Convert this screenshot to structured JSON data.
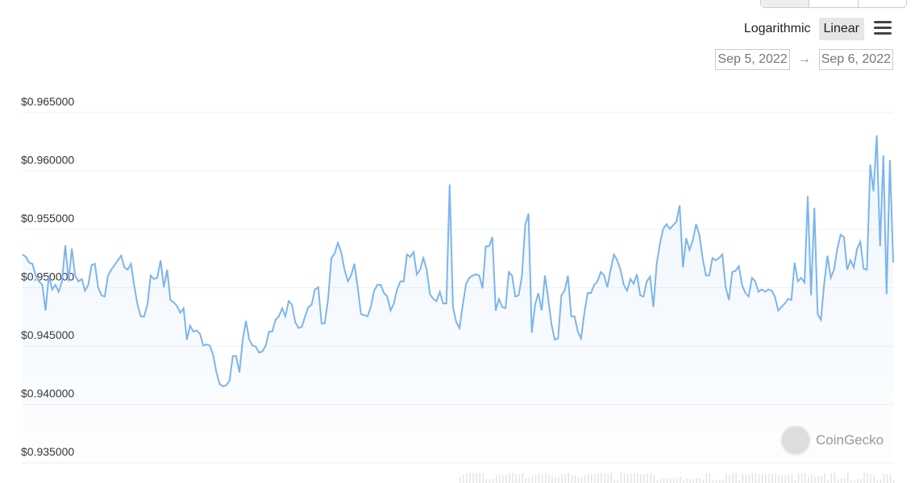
{
  "controls": {
    "scale_options": [
      "Logarithmic",
      "Linear"
    ],
    "active_scale": "Linear",
    "date_from": "Sep 5, 2022",
    "date_arrow": "→",
    "date_to": "Sep 6, 2022",
    "menu_icon": "hamburger-menu-icon"
  },
  "watermark": "CoinGecko",
  "chart_data": {
    "type": "area",
    "title": "",
    "xlabel": "",
    "ylabel": "",
    "x_range": [
      "Sep 5, 2022",
      "Sep 6, 2022"
    ],
    "ylim": [
      0.935,
      0.965
    ],
    "yticks": [
      "$0.935000",
      "$0.940000",
      "$0.945000",
      "$0.950000",
      "$0.955000",
      "$0.960000",
      "$0.965000"
    ],
    "ytick_values": [
      0.935,
      0.94,
      0.945,
      0.95,
      0.955,
      0.96,
      0.965
    ],
    "grid": true,
    "line_color": "#7cb5ec",
    "values": [
      0.9523,
      0.9521,
      0.9516,
      0.9515,
      0.9505,
      0.95,
      0.9497,
      0.9475,
      0.9505,
      0.9493,
      0.9497,
      0.9491,
      0.95,
      0.9531,
      0.95,
      0.9528,
      0.9505,
      0.95,
      0.9502,
      0.9492,
      0.9497,
      0.9514,
      0.9515,
      0.9495,
      0.9488,
      0.9487,
      0.9505,
      0.951,
      0.9514,
      0.9518,
      0.9522,
      0.9512,
      0.951,
      0.9515,
      0.9496,
      0.948,
      0.947,
      0.947,
      0.948,
      0.9505,
      0.9502,
      0.9503,
      0.9518,
      0.9495,
      0.951,
      0.9484,
      0.9482,
      0.9479,
      0.9473,
      0.9477,
      0.945,
      0.9462,
      0.9457,
      0.9458,
      0.9455,
      0.9445,
      0.9446,
      0.9445,
      0.9437,
      0.9422,
      0.9412,
      0.941,
      0.9411,
      0.9415,
      0.9436,
      0.9436,
      0.9422,
      0.945,
      0.9466,
      0.945,
      0.9445,
      0.9444,
      0.9439,
      0.944,
      0.9445,
      0.9457,
      0.9457,
      0.9467,
      0.947,
      0.9477,
      0.947,
      0.9483,
      0.948,
      0.9465,
      0.946,
      0.9461,
      0.947,
      0.9478,
      0.948,
      0.9493,
      0.9495,
      0.9464,
      0.9464,
      0.9485,
      0.952,
      0.9524,
      0.9533,
      0.9525,
      0.951,
      0.95,
      0.9505,
      0.9515,
      0.9495,
      0.9472,
      0.9471,
      0.947,
      0.9478,
      0.9492,
      0.9497,
      0.9497,
      0.949,
      0.9487,
      0.9475,
      0.9481,
      0.9493,
      0.95,
      0.95,
      0.9523,
      0.9521,
      0.9525,
      0.9506,
      0.951,
      0.952,
      0.951,
      0.9489,
      0.9485,
      0.9483,
      0.9491,
      0.9481,
      0.9481,
      0.9583,
      0.9478,
      0.9465,
      0.946,
      0.948,
      0.9498,
      0.9503,
      0.9505,
      0.9506,
      0.9505,
      0.9494,
      0.953,
      0.953,
      0.9538,
      0.9475,
      0.9485,
      0.9478,
      0.9477,
      0.9508,
      0.9505,
      0.9487,
      0.9488,
      0.9505,
      0.9548,
      0.9558,
      0.9456,
      0.948,
      0.949,
      0.9475,
      0.9505,
      0.9485,
      0.9463,
      0.945,
      0.9451,
      0.9488,
      0.9492,
      0.9505,
      0.947,
      0.947,
      0.9457,
      0.9451,
      0.9473,
      0.949,
      0.949,
      0.9497,
      0.95,
      0.9508,
      0.9505,
      0.9495,
      0.951,
      0.9523,
      0.9518,
      0.951,
      0.9497,
      0.9492,
      0.9502,
      0.9498,
      0.9506,
      0.9488,
      0.9487,
      0.95,
      0.9504,
      0.9478,
      0.9515,
      0.9532,
      0.9545,
      0.9549,
      0.9545,
      0.9548,
      0.9551,
      0.9565,
      0.9512,
      0.9537,
      0.9527,
      0.9535,
      0.9549,
      0.954,
      0.952,
      0.9505,
      0.9505,
      0.952,
      0.9518,
      0.952,
      0.9523,
      0.9495,
      0.9484,
      0.9508,
      0.9509,
      0.9513,
      0.9497,
      0.949,
      0.9487,
      0.9503,
      0.95,
      0.9491,
      0.9493,
      0.9491,
      0.9493,
      0.9492,
      0.9487,
      0.9475,
      0.9478,
      0.9481,
      0.9485,
      0.9484,
      0.9516,
      0.95,
      0.9503,
      0.9499,
      0.9573,
      0.9488,
      0.9563,
      0.9472,
      0.9467,
      0.9498,
      0.9522,
      0.9503,
      0.951,
      0.9528,
      0.954,
      0.9538,
      0.951,
      0.9518,
      0.9512,
      0.9528,
      0.9534,
      0.9511,
      0.951,
      0.96,
      0.9577,
      0.9625,
      0.953,
      0.9608,
      0.9489,
      0.9604,
      0.9516
    ]
  }
}
